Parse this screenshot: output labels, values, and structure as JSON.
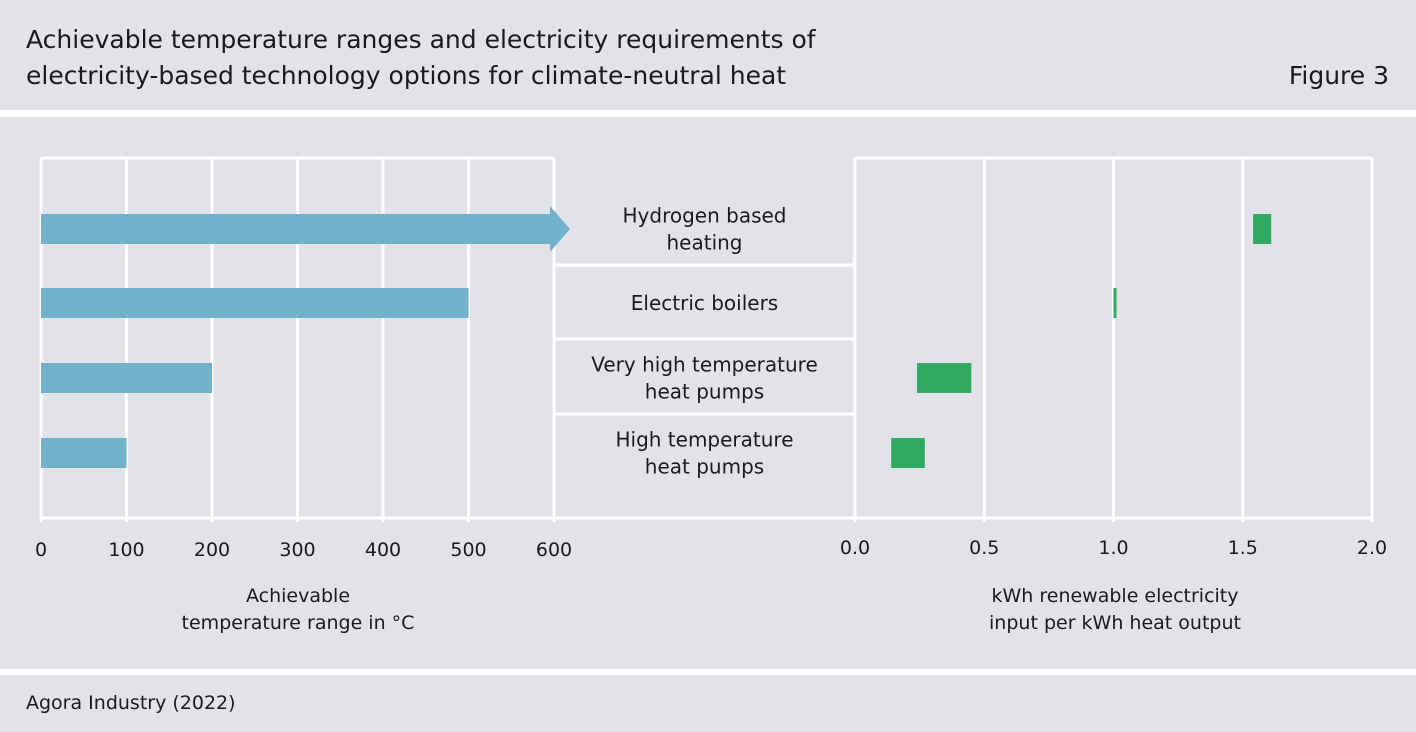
{
  "header": {
    "title_line1": "Achievable temperature ranges and electricity requirements of",
    "title_line2": "electricity-based technology options for climate-neutral heat",
    "figure_label": "Figure 3"
  },
  "footer": {
    "source": "Agora Industry (2022)"
  },
  "colors": {
    "background": "#e2e3e8",
    "temperature_bar": "#72b1cb",
    "electricity_bar": "#2eaa62",
    "grid": "#ffffff"
  },
  "chart_data": [
    {
      "type": "bar",
      "orientation": "horizontal",
      "categories": [
        "Hydrogen based heating",
        "Electric boilers",
        "Very high temperature heat pumps",
        "High temperature heat pumps"
      ],
      "series": [
        {
          "values": [
            [
              0,
              600
            ],
            [
              0,
              500
            ],
            [
              0,
              200
            ],
            [
              0,
              100
            ]
          ]
        }
      ],
      "open_ended_above_axis": [
        true,
        false,
        false,
        false
      ],
      "xlim": [
        0,
        600
      ],
      "xticks": [
        "0",
        "100",
        "200",
        "300",
        "400",
        "500",
        "600"
      ],
      "xlabel_lines": [
        "Achievable",
        "temperature range in °C"
      ],
      "grid": true
    },
    {
      "type": "bar",
      "orientation": "horizontal",
      "categories": [
        "Hydrogen based heating",
        "Electric boilers",
        "Very high temperature heat pumps",
        "High temperature heat pumps"
      ],
      "series": [
        {
          "values": [
            [
              1.54,
              1.61
            ],
            [
              1.0,
              1.01
            ],
            [
              0.24,
              0.45
            ],
            [
              0.14,
              0.27
            ]
          ]
        }
      ],
      "xlim": [
        0.0,
        2.0
      ],
      "xticks": [
        "0.0",
        "0.5",
        "1.0",
        "1.5",
        "2.0"
      ],
      "xlabel_lines": [
        "kWh renewable electricity",
        "input per kWh heat output"
      ],
      "grid": true
    }
  ],
  "category_labels": [
    [
      "Hydrogen based",
      "heating"
    ],
    [
      "Electric boilers"
    ],
    [
      "Very high temperature",
      "heat pumps"
    ],
    [
      "High temperature",
      "heat pumps"
    ]
  ]
}
